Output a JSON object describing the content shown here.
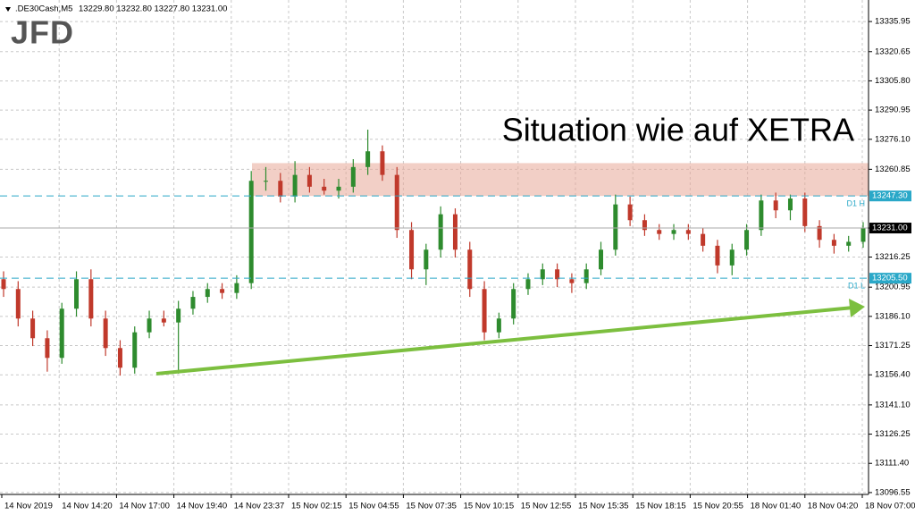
{
  "chart_data": {
    "type": "candlestick",
    "header": {
      "symbol": ".DE30Cash,M5",
      "quote": "13229.80 13232.80 13227.80 13231.00"
    },
    "logo": "JFD",
    "annotation": "Situation wie auf XETRA",
    "ylim": [
      13095.6,
      13346.9
    ],
    "yticks": [
      13335.95,
      13320.65,
      {
        "value": 13305.8,
        "label": "13305.80"
      },
      13290.95,
      {
        "value": 13276.1,
        "label": "13276.10"
      },
      13260.85,
      {
        "value": 13231,
        "label": "13231.00"
      },
      13216.25,
      13200.95,
      {
        "value": 13186.1,
        "label": "13186.10"
      },
      13171.25,
      {
        "value": 13156.4,
        "label": "13156.40"
      },
      {
        "value": 13141.1,
        "label": "13141.10"
      },
      13126.25,
      {
        "value": 13111.4,
        "label": "13111.40"
      },
      13096.55
    ],
    "x_labels": [
      "14 Nov 2019",
      "14 Nov 14:20",
      "14 Nov 17:00",
      "14 Nov 19:40",
      "14 Nov 23:37",
      "15 Nov 02:15",
      "15 Nov 04:55",
      "15 Nov 07:35",
      "15 Nov 10:15",
      "15 Nov 12:55",
      "15 Nov 15:35",
      "15 Nov 18:15",
      "15 Nov 20:55",
      "18 Nov 01:40",
      "18 Nov 04:20",
      "18 Nov 07:00"
    ],
    "grid": true,
    "up_color": "#2e8b2e",
    "down_color": "#c0392b",
    "open": [
      13205,
      13200,
      13185,
      13175,
      13165,
      13190,
      13205,
      13185,
      13170,
      13160,
      13178,
      13185,
      13183,
      13190,
      13196,
      13200,
      13198,
      13203,
      13255,
      13255,
      13247,
      13258,
      13252,
      13250,
      13252,
      13262,
      13270,
      13258,
      13230,
      13210,
      13220,
      13238,
      13220,
      13200,
      13178,
      13185,
      13200,
      13205,
      13210,
      13205,
      13203,
      13210,
      13220,
      13243,
      13235,
      13230,
      13228,
      13230,
      13228,
      13222,
      13212,
      13220,
      13230,
      13245,
      13240,
      13246,
      13232,
      13225,
      13222,
      13224
    ],
    "high": [
      13209,
      13204,
      13189,
      13179,
      13193,
      13209,
      13210,
      13189,
      13174,
      13181,
      13189,
      13189,
      13194,
      13199,
      13203,
      13203,
      13207,
      13260,
      13262,
      13259,
      13265,
      13262,
      13256,
      13256,
      13266,
      13281,
      13273,
      13262,
      13234,
      13223,
      13242,
      13241,
      13224,
      13204,
      13188,
      13203,
      13208,
      13213,
      13213,
      13208,
      13213,
      13224,
      13248,
      13247,
      13238,
      13233,
      13233,
      13233,
      13231,
      13225,
      13223,
      13233,
      13248,
      13249,
      13248,
      13249,
      13235,
      13228,
      13227,
      13234
    ],
    "low": [
      13196,
      13181,
      13171,
      13158,
      13162,
      13186,
      13181,
      13166,
      13156,
      13157,
      13175,
      13181,
      13157,
      13187,
      13193,
      13195,
      13195,
      13200,
      13250,
      13244,
      13244,
      13249,
      13248,
      13246,
      13249,
      13258,
      13255,
      13226,
      13205,
      13202,
      13216,
      13216,
      13196,
      13174,
      13175,
      13182,
      13197,
      13202,
      13201,
      13198,
      13200,
      13207,
      13217,
      13232,
      13227,
      13225,
      13225,
      13225,
      13219,
      13208,
      13207,
      13217,
      13227,
      13236,
      13235,
      13229,
      13221,
      13218,
      13219,
      13221
    ],
    "close": [
      13200,
      13185,
      13175,
      13165,
      13190,
      13205,
      13185,
      13170,
      13160,
      13178,
      13185,
      13183,
      13190,
      13196,
      13200,
      13198,
      13203,
      13255,
      13255,
      13247,
      13258,
      13252,
      13250,
      13252,
      13262,
      13270,
      13258,
      13230,
      13210,
      13220,
      13238,
      13220,
      13200,
      13178,
      13185,
      13200,
      13205,
      13210,
      13205,
      13203,
      13210,
      13220,
      13243,
      13235,
      13230,
      13228,
      13230,
      13228,
      13222,
      13212,
      13220,
      13230,
      13245,
      13240,
      13246,
      13232,
      13225,
      13222,
      13224,
      13231
    ],
    "resistance_zone": [
      13247.3,
      13264
    ],
    "current_price": {
      "value": 13231,
      "label": "13231.00"
    },
    "levels": [
      {
        "name": "D1 H",
        "value": 13247.3,
        "label": "13247.30"
      },
      {
        "name": "D1 L",
        "value": 13205.5,
        "label": "13205.50"
      }
    ]
  }
}
